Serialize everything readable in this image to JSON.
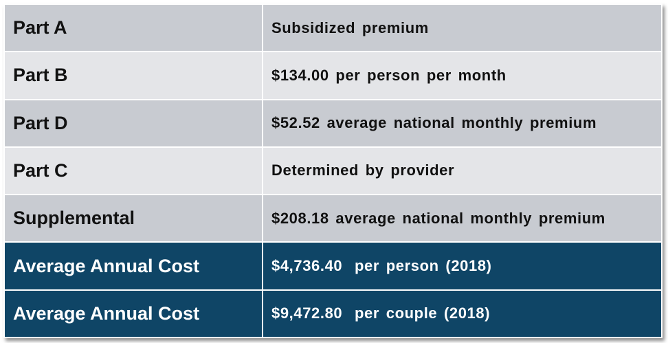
{
  "rows": [
    {
      "label": "Part A",
      "value": "Subsidized premium"
    },
    {
      "label": "Part B",
      "value": "$134.00 per person per month"
    },
    {
      "label": "Part D",
      "value": "$52.52 average national monthly premium"
    },
    {
      "label": "Part C",
      "value": "Determined by provider"
    },
    {
      "label": "Supplemental",
      "value": "$208.18 average national monthly premium"
    }
  ],
  "totals": [
    {
      "label": "Average Annual Cost",
      "amount": "$4,736.40",
      "detail": "per person (2018)"
    },
    {
      "label": "Average Annual Cost",
      "amount": "$9,472.80",
      "detail": "per couple (2018)"
    }
  ],
  "colors": {
    "row_dark": "#c8cbd1",
    "row_light": "#e4e5e8",
    "total_bg": "#0f4566",
    "total_text": "#ffffff"
  }
}
